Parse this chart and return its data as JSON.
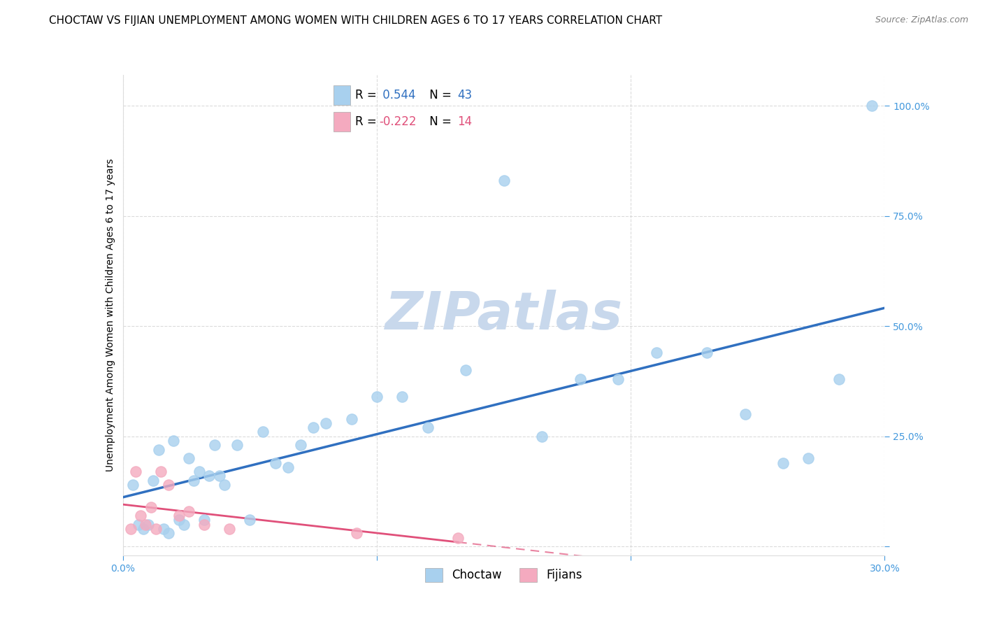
{
  "title": "CHOCTAW VS FIJIAN UNEMPLOYMENT AMONG WOMEN WITH CHILDREN AGES 6 TO 17 YEARS CORRELATION CHART",
  "source": "Source: ZipAtlas.com",
  "ylabel": "Unemployment Among Women with Children Ages 6 to 17 years",
  "xlim": [
    0.0,
    0.3
  ],
  "ylim": [
    -0.02,
    1.07
  ],
  "choctaw_R": 0.544,
  "choctaw_N": 43,
  "fijian_R": -0.222,
  "fijian_N": 14,
  "choctaw_color": "#A8D0EE",
  "fijian_color": "#F4AABF",
  "choctaw_line_color": "#3070C0",
  "fijian_line_color": "#E0507A",
  "watermark_color": "#C8D8EC",
  "background_color": "#FFFFFF",
  "tick_color": "#4499DD",
  "choctaw_x": [
    0.004,
    0.006,
    0.008,
    0.01,
    0.012,
    0.014,
    0.016,
    0.018,
    0.02,
    0.022,
    0.024,
    0.026,
    0.028,
    0.03,
    0.032,
    0.034,
    0.036,
    0.038,
    0.04,
    0.045,
    0.05,
    0.055,
    0.06,
    0.065,
    0.07,
    0.075,
    0.08,
    0.09,
    0.1,
    0.11,
    0.12,
    0.135,
    0.15,
    0.165,
    0.18,
    0.195,
    0.21,
    0.23,
    0.245,
    0.26,
    0.27,
    0.282,
    0.295
  ],
  "choctaw_y": [
    0.14,
    0.05,
    0.04,
    0.05,
    0.15,
    0.22,
    0.04,
    0.03,
    0.24,
    0.06,
    0.05,
    0.2,
    0.15,
    0.17,
    0.06,
    0.16,
    0.23,
    0.16,
    0.14,
    0.23,
    0.06,
    0.26,
    0.19,
    0.18,
    0.23,
    0.27,
    0.28,
    0.29,
    0.34,
    0.34,
    0.27,
    0.4,
    0.83,
    0.25,
    0.38,
    0.38,
    0.44,
    0.44,
    0.3,
    0.19,
    0.2,
    0.38,
    1.0
  ],
  "fijian_x": [
    0.003,
    0.005,
    0.007,
    0.009,
    0.011,
    0.013,
    0.015,
    0.018,
    0.022,
    0.026,
    0.032,
    0.042,
    0.092,
    0.132
  ],
  "fijian_y": [
    0.04,
    0.17,
    0.07,
    0.05,
    0.09,
    0.04,
    0.17,
    0.14,
    0.07,
    0.08,
    0.05,
    0.04,
    0.03,
    0.02
  ],
  "title_fontsize": 11,
  "axis_label_fontsize": 10,
  "tick_fontsize": 10,
  "legend_fontsize": 12,
  "scatter_size": 120
}
